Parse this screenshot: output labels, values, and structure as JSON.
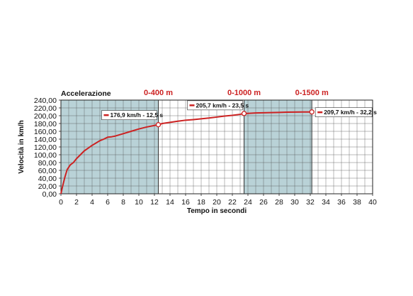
{
  "chart_data": {
    "type": "line",
    "title": "Accelerazione",
    "xlabel": "Tempo in secondi",
    "ylabel": "Velocità in km/h",
    "xlim": [
      0,
      40
    ],
    "ylim": [
      0,
      240
    ],
    "xticks": [
      "0",
      "2",
      "4",
      "6",
      "8",
      "10",
      "12",
      "14",
      "16",
      "18",
      "20",
      "22",
      "24",
      "26",
      "28",
      "30",
      "32",
      "34",
      "36",
      "38",
      "40"
    ],
    "yticks": [
      "0,00",
      "20,00",
      "40,00",
      "60,00",
      "80,00",
      "100,00",
      "120,00",
      "140,00",
      "160,00",
      "180,00",
      "200,00",
      "220,00",
      "240,00"
    ],
    "grid": true,
    "series_color": "#cc2222",
    "shade_color": "#b9d2d7",
    "marker_color": "#cc2222",
    "x": [
      0,
      0.2,
      0.5,
      0.8,
      1.2,
      1.6,
      2.0,
      2.5,
      3.0,
      3.5,
      4.0,
      4.5,
      5.0,
      5.5,
      6.0,
      6.5,
      7.0,
      8.0,
      9.0,
      10.0,
      11.0,
      12.0,
      12.5,
      13.0,
      14.0,
      15.0,
      16.0,
      17.0,
      18.0,
      19.0,
      20.0,
      21.0,
      22.0,
      23.0,
      23.5,
      24.0,
      25.0,
      26.0,
      27.0,
      28.0,
      29.0,
      30.0,
      31.0,
      32.0,
      32.2
    ],
    "y": [
      0,
      18,
      42,
      62,
      74,
      80,
      90,
      100,
      110,
      117,
      124,
      130,
      136,
      140,
      145,
      146,
      148,
      154,
      160,
      166,
      171,
      175,
      176.9,
      180,
      183,
      186,
      188.5,
      190,
      192,
      194,
      196.5,
      199,
      201,
      203.5,
      205.7,
      206,
      207,
      207.5,
      208,
      208.5,
      209,
      209.3,
      209.5,
      209.6,
      209.7
    ],
    "shaded_bands": [
      [
        0,
        12.5
      ],
      [
        23.5,
        32.2
      ]
    ],
    "markers": [
      {
        "label": "0-400 m",
        "x": 12.5,
        "y": 176.9,
        "annotation": "176,9 km/h - 12,5 s"
      },
      {
        "label": "0-1000 m",
        "x": 23.5,
        "y": 205.7,
        "annotation": "205,7 km/h - 23,5 s"
      },
      {
        "label": "0-1500 m",
        "x": 32.2,
        "y": 209.7,
        "annotation": "209,7 km/h - 32,2 s"
      }
    ]
  }
}
